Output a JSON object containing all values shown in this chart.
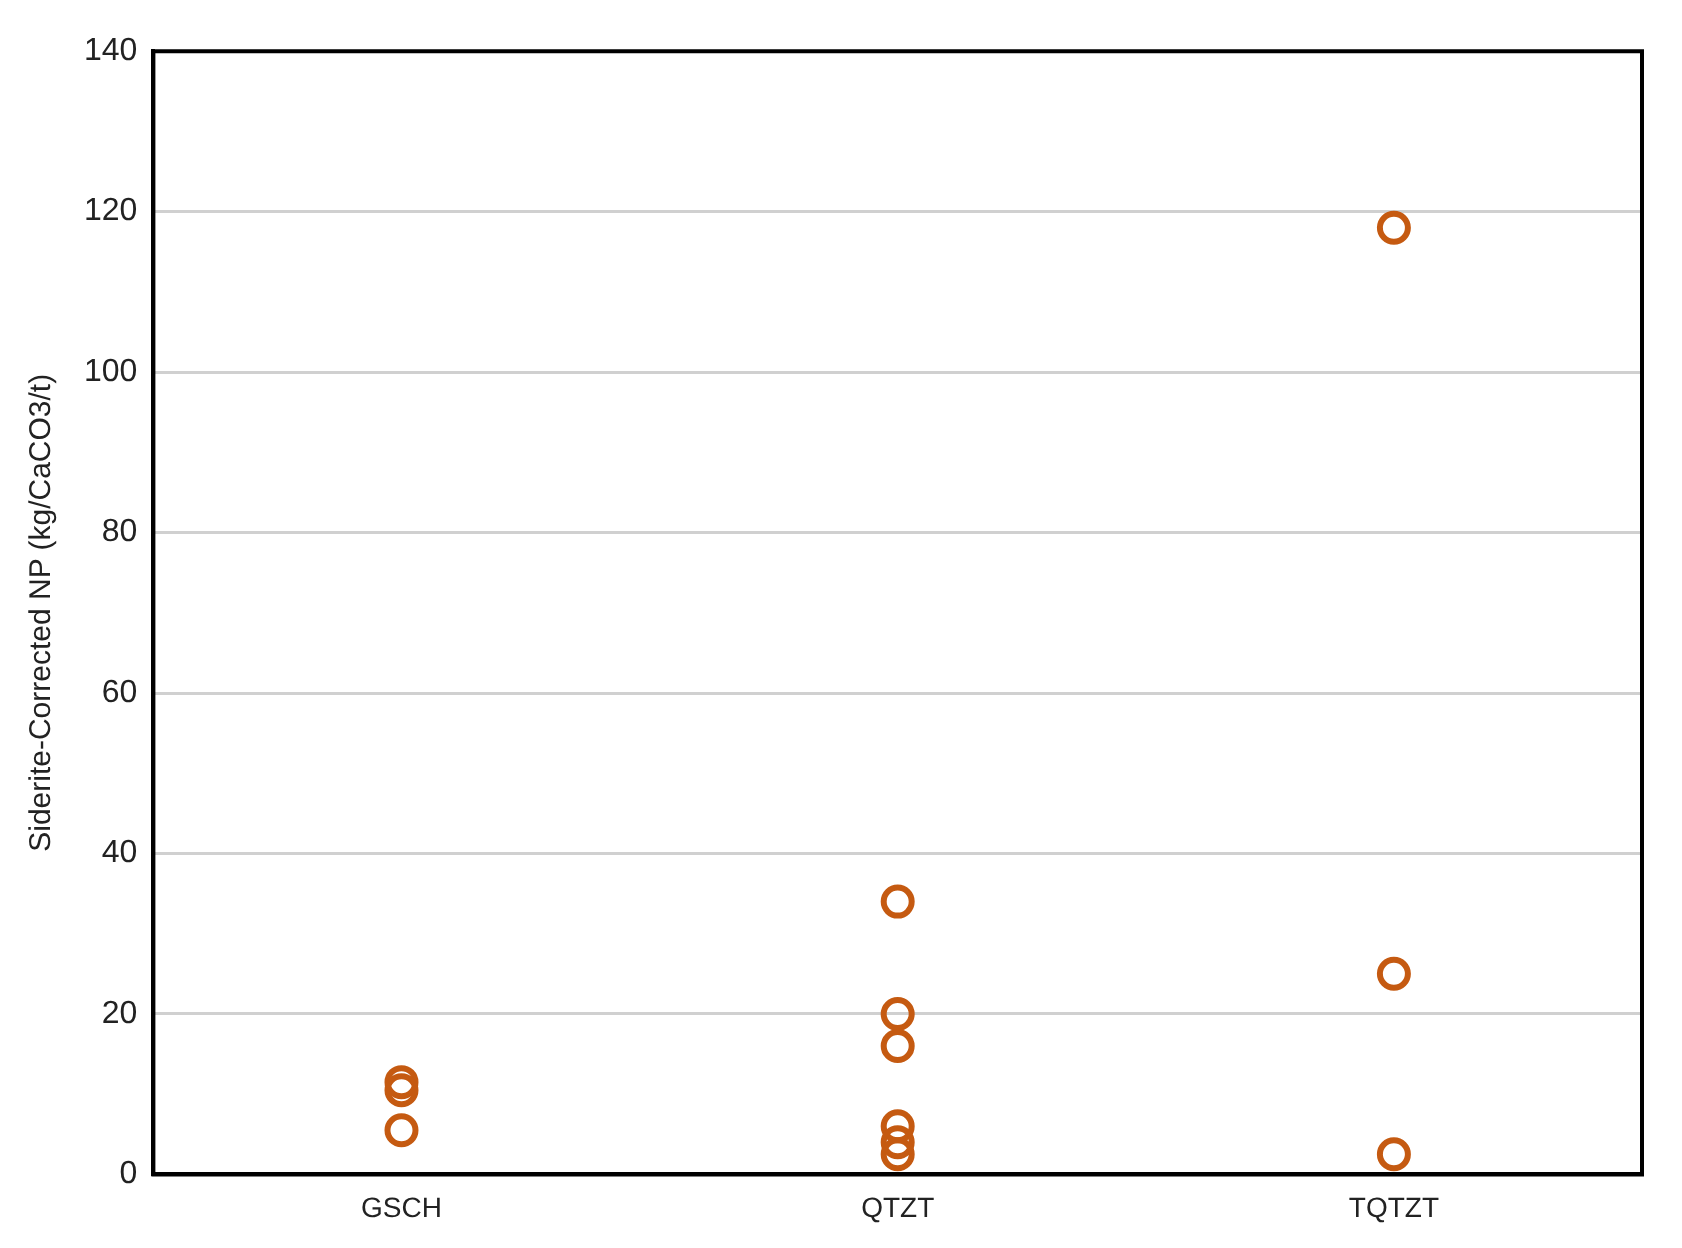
{
  "chart_data": {
    "type": "scatter",
    "ylabel": "Siderite-Corrected NP (kg/CaCO3/t)",
    "categories": [
      "GSCH",
      "QTZT",
      "TQTZT"
    ],
    "series": [
      {
        "color": "#c55a11",
        "x": [
          "GSCH",
          "GSCH",
          "GSCH",
          "QTZT",
          "QTZT",
          "QTZT",
          "QTZT",
          "QTZT",
          "QTZT",
          "TQTZT",
          "TQTZT",
          "TQTZT"
        ],
        "values": [
          11.5,
          10.5,
          5.5,
          34,
          20,
          16,
          6,
          4,
          2.5,
          118,
          25,
          2.5
        ]
      }
    ],
    "ylim": [
      0,
      140
    ],
    "yticks": [
      0,
      20,
      40,
      60,
      80,
      100,
      120,
      140
    ],
    "grid": "y",
    "marker": "circle",
    "legend": false
  }
}
